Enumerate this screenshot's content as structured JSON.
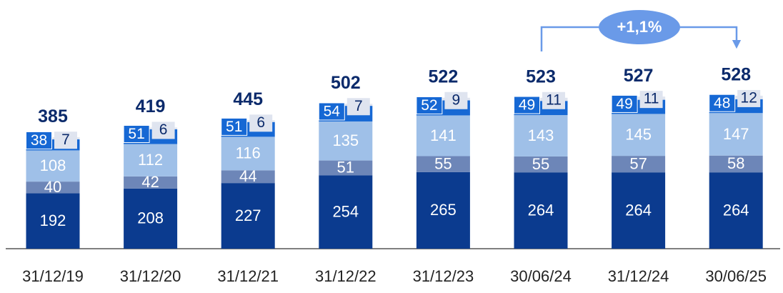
{
  "chart_data": {
    "type": "stacked_bar",
    "categories": [
      "31/12/19",
      "31/12/20",
      "31/12/21",
      "31/12/22",
      "31/12/23",
      "30/06/24",
      "31/12/24",
      "30/06/25"
    ],
    "series": [
      {
        "color": "#0b3b8f",
        "values": [
          192,
          208,
          227,
          254,
          265,
          264,
          264,
          264
        ]
      },
      {
        "color": "#6d86b8",
        "values": [
          40,
          42,
          44,
          51,
          55,
          55,
          57,
          58
        ]
      },
      {
        "color": "#9fc0e8",
        "values": [
          108,
          112,
          116,
          135,
          141,
          143,
          145,
          147
        ]
      },
      {
        "color": "#1668d4",
        "values": [
          38,
          51,
          51,
          54,
          52,
          49,
          49,
          48
        ]
      },
      {
        "color": "#dfe4ef",
        "values": [
          7,
          6,
          6,
          7,
          9,
          11,
          11,
          12
        ]
      }
    ],
    "totals": [
      385,
      419,
      445,
      502,
      522,
      523,
      527,
      528
    ],
    "annotation": "+1,1%",
    "ylim": [
      0,
      860
    ]
  }
}
